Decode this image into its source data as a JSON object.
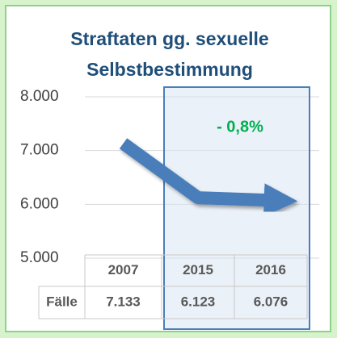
{
  "chart_data": {
    "type": "line",
    "title": [
      "Straftaten gg. sexuelle",
      "Selbstbestimmung"
    ],
    "categories": [
      "2007",
      "2015",
      "2016"
    ],
    "series": [
      {
        "name": "Fälle",
        "color": "#4a7ebb",
        "values": [
          7133,
          6123,
          6076
        ],
        "value_labels": [
          "7.133",
          "6.123",
          "6.076"
        ]
      }
    ],
    "annotation": "- 0,8%",
    "ylim": [
      5000,
      8000
    ],
    "yticks": [
      {
        "value": 5000,
        "label": "5.000"
      },
      {
        "value": 6000,
        "label": "6.000"
      },
      {
        "value": 7000,
        "label": "7.000"
      },
      {
        "value": 8000,
        "label": "8.000"
      }
    ],
    "grid": true
  }
}
